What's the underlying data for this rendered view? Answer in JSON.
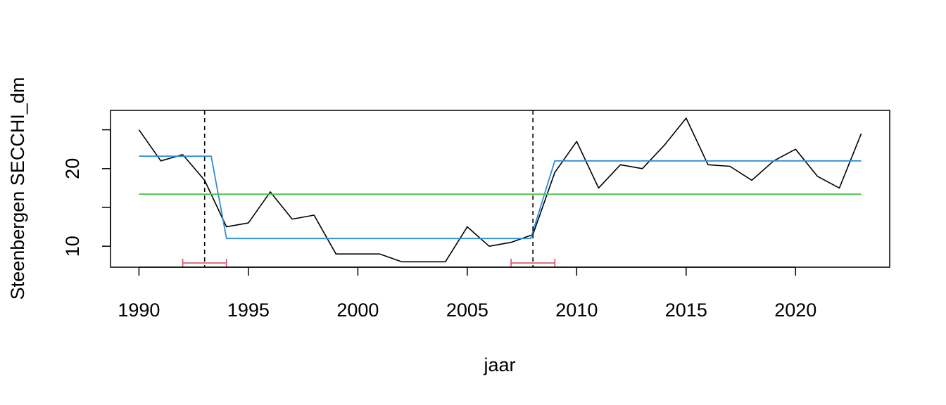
{
  "chart_data": {
    "type": "line",
    "title": "",
    "xlabel": "jaar",
    "ylabel": "Steenbergen SECCHI_dm",
    "xlim": [
      1988.7,
      2024.3
    ],
    "ylim": [
      7.3,
      27.5
    ],
    "grid": false,
    "x_ticks": [
      "1990",
      "1995",
      "2000",
      "2005",
      "2010",
      "2015",
      "2020"
    ],
    "y_ticks": [
      "10",
      "20"
    ],
    "series": [
      {
        "role": "observed",
        "color": "#000000",
        "x": [
          1990,
          1991,
          1992,
          1993,
          1994,
          1995,
          1996,
          1997,
          1998,
          1999,
          2000,
          2001,
          2002,
          2003,
          2004,
          2005,
          2006,
          2007,
          2008,
          2009,
          2010,
          2011,
          2012,
          2013,
          2014,
          2015,
          2016,
          2017,
          2018,
          2019,
          2020,
          2021,
          2022,
          2023
        ],
        "y": [
          25,
          21,
          21.8,
          18.5,
          12.5,
          13,
          17,
          13.5,
          14,
          9,
          9,
          9,
          8,
          8,
          8,
          12.5,
          10,
          10.5,
          11.5,
          19.5,
          23.5,
          17.5,
          20.5,
          20,
          23,
          26.5,
          20.5,
          20.3,
          18.5,
          21,
          22.5,
          19,
          17.5,
          24.5
        ]
      },
      {
        "role": "segment means",
        "color": "#2a8fd6",
        "x": [
          1990,
          1993.3,
          1994,
          2007.9,
          2009,
          2023
        ],
        "y": [
          21.6,
          21.6,
          11,
          11,
          21,
          21
        ]
      },
      {
        "role": "overall mean",
        "color": "#4ec34e",
        "x": [
          1990,
          2023
        ],
        "y": [
          16.7,
          16.7
        ]
      }
    ],
    "breakpoints": [
      1993,
      2008
    ],
    "breakpoint_intervals": [
      [
        1992,
        1994
      ],
      [
        2007,
        2009
      ]
    ],
    "breakpoint_line_color": "#000000",
    "interval_color": "#d95f76"
  }
}
